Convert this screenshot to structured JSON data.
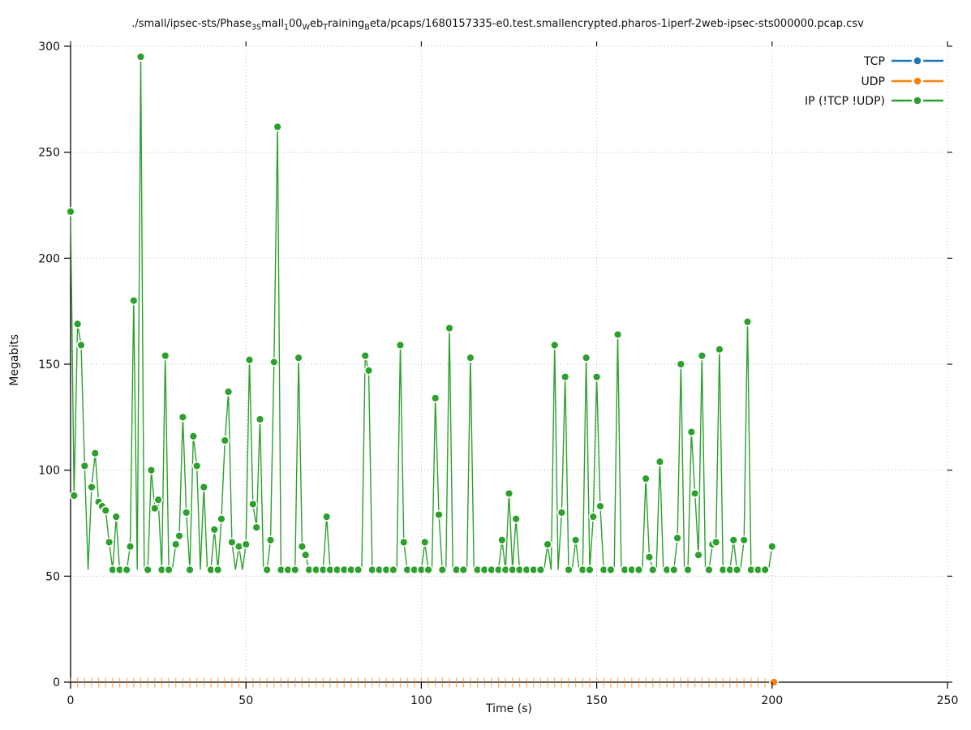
{
  "chart_data": {
    "type": "line",
    "title_segments": [
      {
        "t": "./small/ipsec-sts/Phase"
      },
      {
        "s": "3S"
      },
      {
        "t": "mall"
      },
      {
        "s": "1"
      },
      {
        "t": "00"
      },
      {
        "s": "W"
      },
      {
        "t": "eb"
      },
      {
        "s": "T"
      },
      {
        "t": "raining"
      },
      {
        "s": "B"
      },
      {
        "t": "eta/pcaps/1680157335-e0.test.smallencrypted.pharos-1iperf-2web-ipsec-sts000000.pcap.csv"
      }
    ],
    "xlabel": "Time (s)",
    "ylabel": "Megabits",
    "xlim": [
      0,
      250
    ],
    "ylim": [
      0,
      300
    ],
    "xticks": [
      0,
      50,
      100,
      150,
      200,
      250
    ],
    "yticks": [
      0,
      50,
      100,
      150,
      200,
      250,
      300
    ],
    "grid": true,
    "legend_position": "top-right-inside",
    "series": [
      {
        "name": "TCP",
        "color": "#1f77b4",
        "style": "linespoints",
        "points": []
      },
      {
        "name": "UDP",
        "color": "#ff7f0e",
        "style": "linespoints-ticks",
        "t_start": 0,
        "t_end": 200,
        "t_step": 2,
        "constant_value": 0,
        "end_marker_t": 200.5
      },
      {
        "name": "IP (!TCP  !UDP)",
        "color": "#2ca02c",
        "style": "linespoints",
        "baseline": 53,
        "t_start": 0,
        "t_step": 1,
        "values": [
          222,
          88,
          169,
          159,
          102,
          53,
          92,
          108,
          85,
          83,
          81,
          66,
          53,
          78,
          53,
          53,
          53,
          64,
          180,
          53,
          295,
          53,
          53,
          100,
          82,
          86,
          53,
          154,
          53,
          53,
          65,
          69,
          125,
          80,
          53,
          116,
          102,
          53,
          92,
          53,
          53,
          72,
          53,
          77,
          114,
          137,
          66,
          53,
          64,
          53,
          65,
          152,
          84,
          73,
          124,
          53,
          53,
          67,
          151,
          262,
          53,
          53,
          53,
          53,
          53,
          153,
          64,
          60,
          53,
          53,
          53,
          53,
          53,
          78,
          53,
          53,
          53,
          53,
          53,
          53,
          53,
          53,
          53,
          53,
          154,
          147,
          53,
          53,
          53,
          53,
          53,
          53,
          53,
          53,
          159,
          66,
          53,
          53,
          53,
          53,
          53,
          66,
          53,
          53,
          134,
          79,
          53,
          53,
          167,
          53,
          53,
          53,
          53,
          53,
          153,
          53,
          53,
          53,
          53,
          53,
          53,
          53,
          53,
          67,
          53,
          89,
          53,
          77,
          53,
          53,
          53,
          53,
          53,
          53,
          53,
          53,
          65,
          53,
          159,
          53,
          80,
          144,
          53,
          53,
          67,
          53,
          53,
          153,
          53,
          78,
          144,
          83,
          53,
          53,
          53,
          53,
          164,
          53,
          53,
          53,
          53,
          53,
          53,
          53,
          96,
          59,
          53,
          53,
          104,
          53,
          53,
          53,
          53,
          68,
          150,
          53,
          53,
          118,
          89,
          60,
          154,
          53,
          53,
          65,
          66,
          157,
          53,
          53,
          53,
          67,
          53,
          53,
          67,
          170,
          53,
          53,
          53,
          53,
          53,
          53,
          64
        ]
      }
    ]
  }
}
